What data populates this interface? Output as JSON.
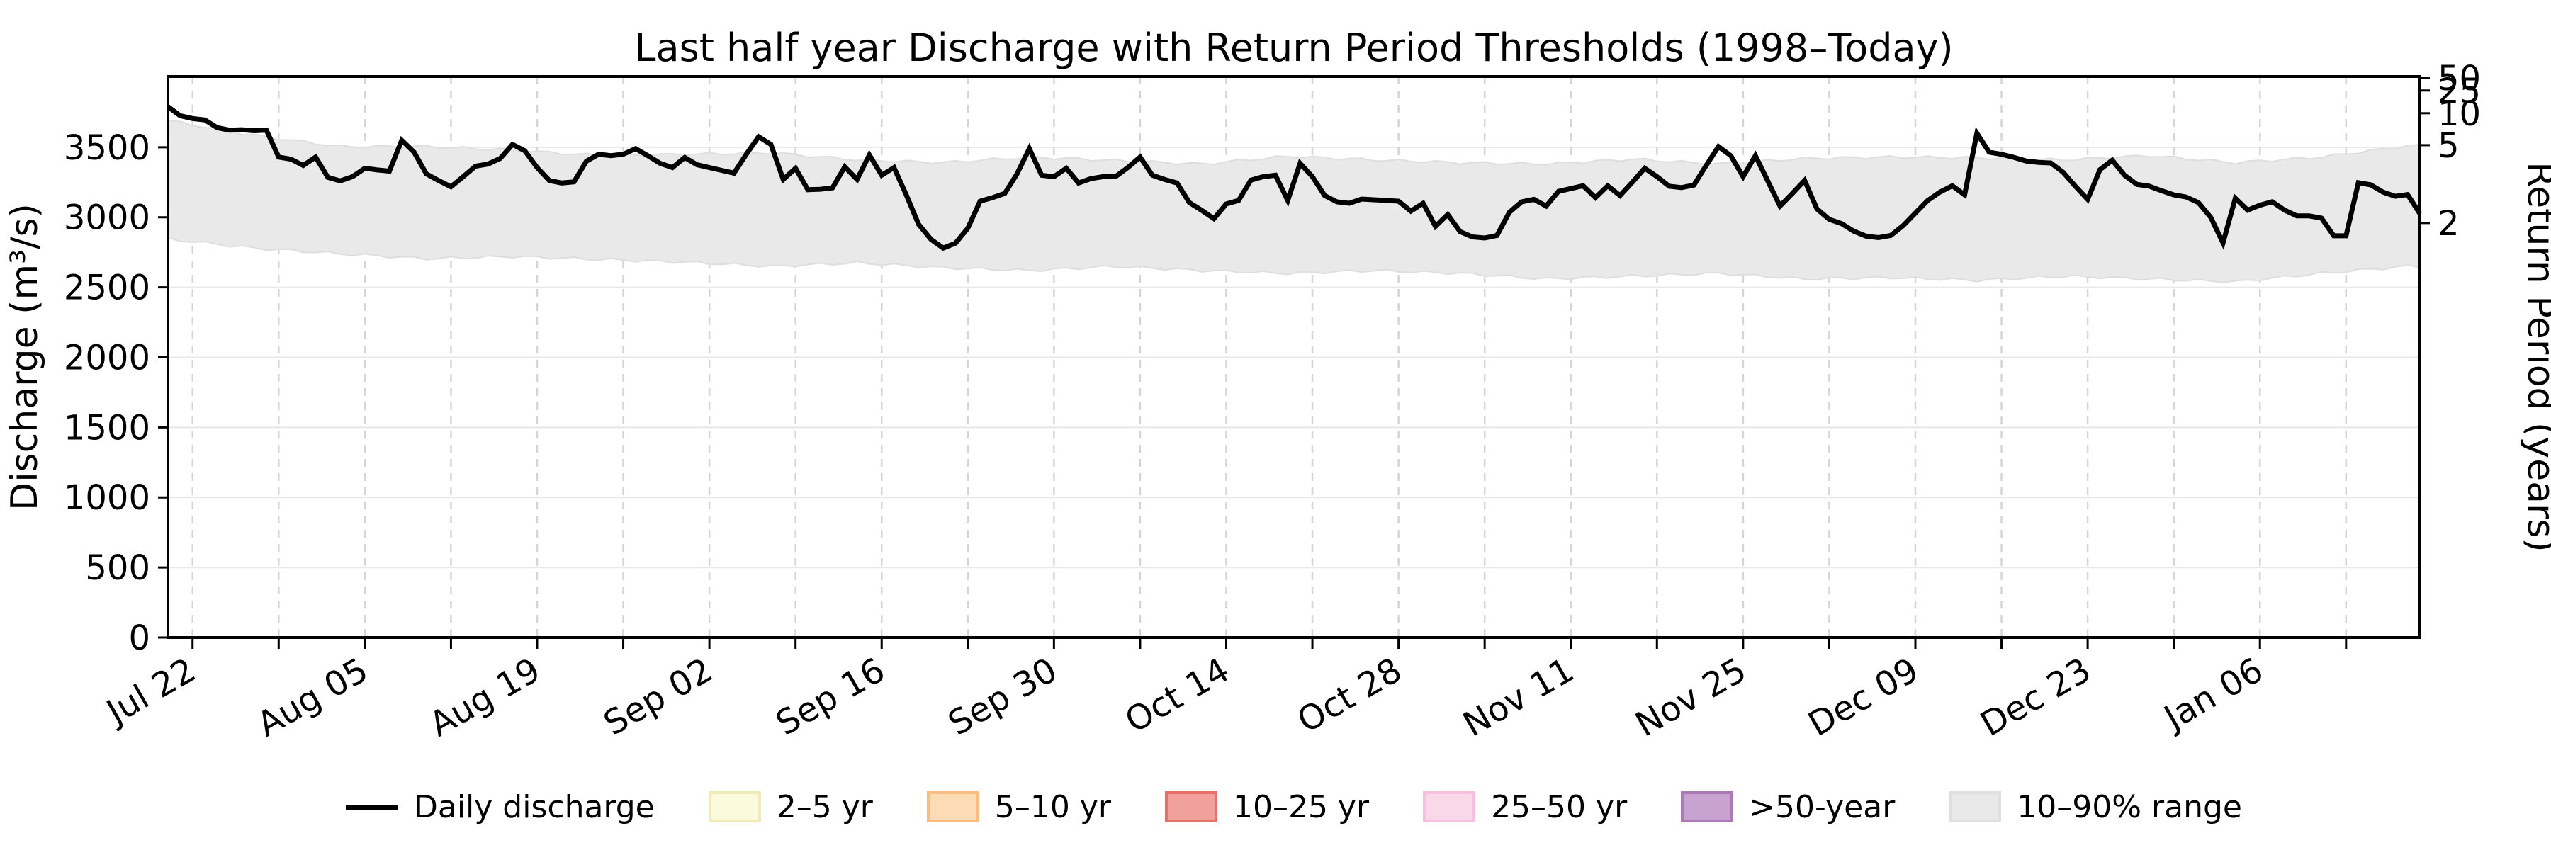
{
  "title": "Last half year Discharge with Return Period Thresholds (1998–Today)",
  "axes": {
    "left_label": "Discharge (m³/s)",
    "right_label": "Return Period (years)",
    "y_ticks": [
      0,
      500,
      1000,
      1500,
      2000,
      2500,
      3000,
      3500
    ],
    "x_ticks": [
      {
        "day": 2,
        "label": "Jul 22"
      },
      {
        "day": 9,
        "label": ""
      },
      {
        "day": 16,
        "label": "Aug 05"
      },
      {
        "day": 23,
        "label": ""
      },
      {
        "day": 30,
        "label": "Aug 19"
      },
      {
        "day": 37,
        "label": ""
      },
      {
        "day": 44,
        "label": "Sep 02"
      },
      {
        "day": 51,
        "label": ""
      },
      {
        "day": 58,
        "label": "Sep 16"
      },
      {
        "day": 65,
        "label": ""
      },
      {
        "day": 72,
        "label": "Sep 30"
      },
      {
        "day": 79,
        "label": ""
      },
      {
        "day": 86,
        "label": "Oct 14"
      },
      {
        "day": 93,
        "label": ""
      },
      {
        "day": 100,
        "label": "Oct 28"
      },
      {
        "day": 107,
        "label": ""
      },
      {
        "day": 114,
        "label": "Nov 11"
      },
      {
        "day": 121,
        "label": ""
      },
      {
        "day": 128,
        "label": "Nov 25"
      },
      {
        "day": 135,
        "label": ""
      },
      {
        "day": 142,
        "label": "Dec 09"
      },
      {
        "day": 149,
        "label": ""
      },
      {
        "day": 156,
        "label": "Dec 23"
      },
      {
        "day": 163,
        "label": ""
      },
      {
        "day": 170,
        "label": "Jan 06"
      },
      {
        "day": 177,
        "label": ""
      }
    ]
  },
  "chart_data": {
    "type": "line",
    "title": "Last half year Discharge with Return Period Thresholds (1998–Today)",
    "xlabel": "",
    "ylabel_left": "Discharge (m³/s)",
    "ylabel_right": "Return Period (years)",
    "ylim_left": [
      0,
      4005
    ],
    "x_start_date": "Jul 20",
    "x_end_date": "Jan 19",
    "x_step_days": 1,
    "grid": {
      "horizontal": "solid light gray at 500 m³/s steps",
      "vertical": "dashed light gray at weekly ticks"
    },
    "legend_position": "below axes, centered, single row",
    "daily_discharge": [
      3790,
      3725,
      3705,
      3695,
      3640,
      3622,
      3625,
      3618,
      3622,
      3430,
      3415,
      3370,
      3430,
      3285,
      3260,
      3290,
      3350,
      3338,
      3330,
      3550,
      3465,
      3310,
      3262,
      3218,
      3290,
      3365,
      3380,
      3420,
      3520,
      3475,
      3355,
      3262,
      3245,
      3253,
      3400,
      3450,
      3440,
      3450,
      3490,
      3440,
      3385,
      3355,
      3427,
      3375,
      3355,
      3335,
      3315,
      3450,
      3575,
      3520,
      3270,
      3350,
      3197,
      3200,
      3210,
      3360,
      3270,
      3445,
      3300,
      3355,
      3160,
      2950,
      2843,
      2780,
      2815,
      2922,
      3115,
      3140,
      3170,
      3310,
      3490,
      3300,
      3290,
      3350,
      3245,
      3276,
      3290,
      3290,
      3355,
      3430,
      3300,
      3270,
      3245,
      3105,
      3050,
      2990,
      3095,
      3120,
      3265,
      3290,
      3300,
      3120,
      3385,
      3290,
      3155,
      3110,
      3100,
      3130,
      3125,
      3120,
      3115,
      3044,
      3100,
      2935,
      3020,
      2898,
      2860,
      2852,
      2870,
      3035,
      3110,
      3128,
      3080,
      3185,
      3205,
      3225,
      3140,
      3225,
      3155,
      3250,
      3350,
      3290,
      3222,
      3212,
      3230,
      3370,
      3505,
      3440,
      3290,
      3440,
      3260,
      3080,
      3170,
      3263,
      3060,
      2985,
      2955,
      2900,
      2865,
      2855,
      2870,
      2940,
      3030,
      3120,
      3180,
      3225,
      3160,
      3600,
      3465,
      3450,
      3428,
      3402,
      3392,
      3388,
      3322,
      3222,
      3128,
      3340,
      3408,
      3300,
      3235,
      3222,
      3190,
      3160,
      3145,
      3105,
      3000,
      2817,
      3136,
      3051,
      3086,
      3111,
      3051,
      3010,
      3010,
      2994,
      2868,
      2868,
      3247,
      3232,
      3180,
      3150,
      3162,
      3025
    ],
    "p10_p90_band": {
      "step_days": 7,
      "upper": [
        3690,
        3585,
        3505,
        3505,
        3480,
        3440,
        3450,
        3460,
        3410,
        3390,
        3430,
        3405,
        3380,
        3435,
        3410,
        3390,
        3380,
        3415,
        3380,
        3420,
        3430,
        3425,
        3410,
        3440,
        3390,
        3430,
        3510
      ],
      "lower": [
        2845,
        2780,
        2740,
        2705,
        2720,
        2700,
        2680,
        2650,
        2675,
        2640,
        2620,
        2650,
        2620,
        2600,
        2620,
        2600,
        2560,
        2580,
        2600,
        2560,
        2570,
        2550,
        2580,
        2560,
        2540,
        2600,
        2650
      ]
    },
    "right_axis_return_period_ticks": [
      {
        "label": "50",
        "discharge_equivalent": 3996
      },
      {
        "label": "25",
        "discharge_equivalent": 3905
      },
      {
        "label": "10",
        "discharge_equivalent": 3743
      },
      {
        "label": "5",
        "discharge_equivalent": 3515
      },
      {
        "label": "2",
        "discharge_equivalent": 2959
      }
    ]
  },
  "legend": {
    "items": [
      {
        "label": "Daily discharge",
        "swatch": "line",
        "fill": "#000000",
        "edge": "#000000"
      },
      {
        "label": "2–5 yr",
        "swatch": "patch",
        "fill": "#fcfadd",
        "edge": "#f0eab8"
      },
      {
        "label": "5–10 yr",
        "swatch": "patch",
        "fill": "#fcdcb6",
        "edge": "#fbbc7f"
      },
      {
        "label": "10–25 yr",
        "swatch": "patch",
        "fill": "#f1a19b",
        "edge": "#e4726b"
      },
      {
        "label": "25–50 yr",
        "swatch": "patch",
        "fill": "#f9d8ea",
        "edge": "#f5c1df"
      },
      {
        "label": ">50-year",
        "swatch": "patch",
        "fill": "#c8a3d1",
        "edge": "#a97ab4"
      },
      {
        "label": "10–90% range",
        "swatch": "patch",
        "fill": "#e9e9e9",
        "edge": "#dfdfdf"
      }
    ]
  },
  "colors": {
    "line": "#000000",
    "band_fill": "#e9e9e9",
    "band_edge": "#dedede",
    "grid_h": "#e7e7e7",
    "grid_v": "#d5d5d5",
    "spine": "#000000"
  }
}
